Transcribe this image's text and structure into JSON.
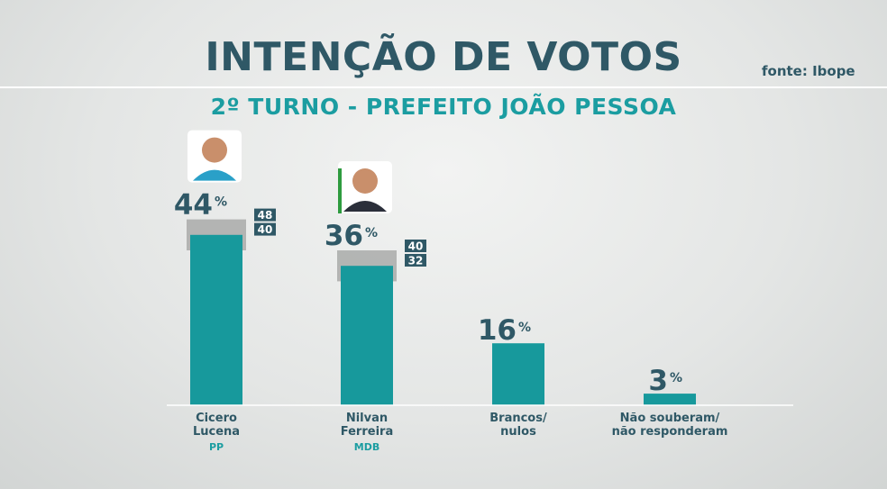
{
  "header": {
    "title": "INTENÇÃO DE VOTOS",
    "subtitle": "2º TURNO - PREFEITO JOÃO PESSOA",
    "source": "fonte: Ibope"
  },
  "colors": {
    "bar": "#17999c",
    "title": "#2f5866",
    "subtitle": "#1b9da1",
    "margin_band": "#a9aaa9",
    "range_box": "#2f5866",
    "party": "#1b9da1",
    "axis": "#ffffff"
  },
  "chart_data": {
    "type": "bar",
    "title": "INTENÇÃO DE VOTOS",
    "subtitle": "2º TURNO - PREFEITO JOÃO PESSOA",
    "unit": "%",
    "ylim": [
      0,
      48
    ],
    "grid": false,
    "bars": [
      {
        "label_line1": "Cicero",
        "label_line2": "Lucena",
        "party": "PP",
        "value": 44,
        "value_label": "44",
        "margin": [
          40,
          48
        ],
        "high_label": "48",
        "low_label": "40",
        "icon": "candidate-photo-icon"
      },
      {
        "label_line1": "Nilvan",
        "label_line2": "Ferreira",
        "party": "MDB",
        "value": 36,
        "value_label": "36",
        "margin": [
          32,
          40
        ],
        "high_label": "40",
        "low_label": "32",
        "icon": "candidate-photo-icon"
      },
      {
        "label_line1": "Brancos/",
        "label_line2": "nulos",
        "party": "",
        "value": 16,
        "value_label": "16"
      },
      {
        "label_line1": "Não souberam/",
        "label_line2": "não responderam",
        "party": "",
        "value": 3,
        "value_label": "3"
      }
    ]
  }
}
